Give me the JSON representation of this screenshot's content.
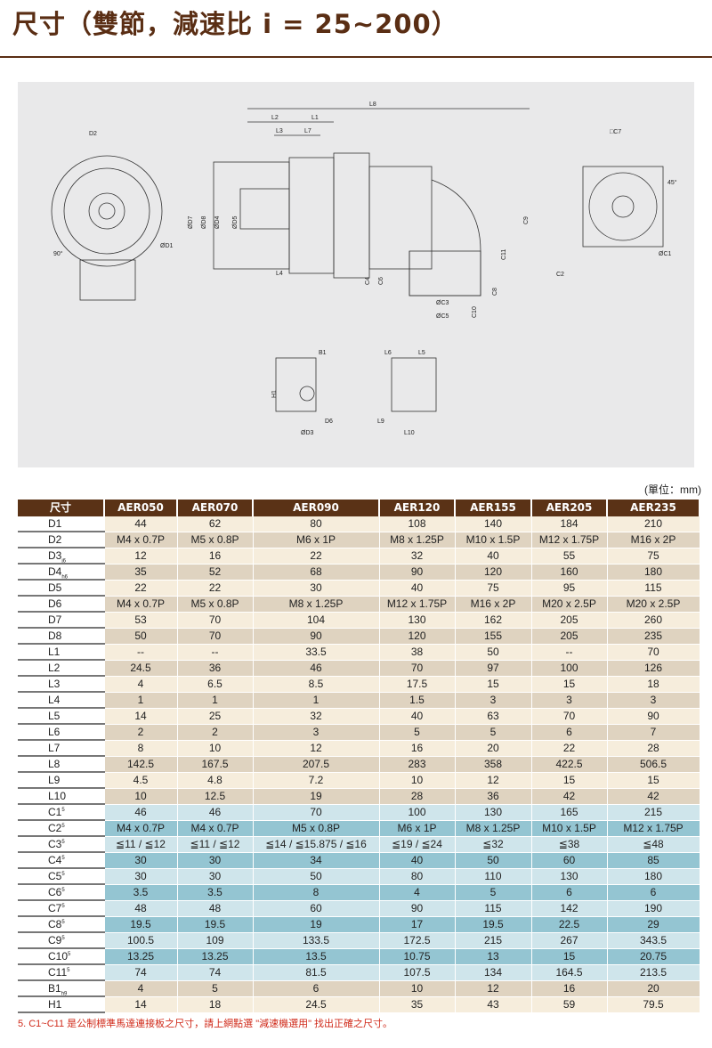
{
  "title": "尺寸（雙節，減速比 i = 25~200）",
  "drawing_labels": [
    "L8",
    "L2",
    "L1",
    "L3",
    "L7",
    "D2",
    "ØD1",
    "ØD7",
    "ØD8",
    "ØD4",
    "ØD5",
    "L4",
    "C4",
    "C6",
    "ØC3",
    "ØC5",
    "C10",
    "C8",
    "C11",
    "C9",
    "□C7",
    "45°",
    "ØC1",
    "C2",
    "B1",
    "H1",
    "D6",
    "ØD3",
    "L6",
    "L5",
    "L9",
    "L10",
    "90°"
  ],
  "unit": "(單位：mm)",
  "table": {
    "headers": [
      "尺寸",
      "AER050",
      "AER070",
      "AER090",
      "AER120",
      "AER155",
      "AER205",
      "AER235"
    ],
    "rows": [
      {
        "label": "D1",
        "sub": "",
        "sup": "",
        "style": "c",
        "values": [
          "44",
          "62",
          "80",
          "108",
          "140",
          "184",
          "210"
        ]
      },
      {
        "label": "D2",
        "sub": "",
        "sup": "",
        "style": "t",
        "values": [
          "M4 x 0.7P",
          "M5 x 0.8P",
          "M6 x 1P",
          "M8 x 1.25P",
          "M10 x 1.5P",
          "M12 x 1.75P",
          "M16 x 2P"
        ]
      },
      {
        "label": "D3",
        "sub": "j6",
        "sup": "",
        "style": "c",
        "values": [
          "12",
          "16",
          "22",
          "32",
          "40",
          "55",
          "75"
        ]
      },
      {
        "label": "D4",
        "sub": "h6",
        "sup": "",
        "style": "t",
        "values": [
          "35",
          "52",
          "68",
          "90",
          "120",
          "160",
          "180"
        ]
      },
      {
        "label": "D5",
        "sub": "",
        "sup": "",
        "style": "c",
        "values": [
          "22",
          "22",
          "30",
          "40",
          "75",
          "95",
          "115"
        ]
      },
      {
        "label": "D6",
        "sub": "",
        "sup": "",
        "style": "t",
        "values": [
          "M4 x 0.7P",
          "M5 x 0.8P",
          "M8 x 1.25P",
          "M12 x 1.75P",
          "M16 x 2P",
          "M20 x 2.5P",
          "M20 x 2.5P"
        ]
      },
      {
        "label": "D7",
        "sub": "",
        "sup": "",
        "style": "c",
        "values": [
          "53",
          "70",
          "104",
          "130",
          "162",
          "205",
          "260"
        ]
      },
      {
        "label": "D8",
        "sub": "",
        "sup": "",
        "style": "t",
        "values": [
          "50",
          "70",
          "90",
          "120",
          "155",
          "205",
          "235"
        ]
      },
      {
        "label": "L1",
        "sub": "",
        "sup": "",
        "style": "c",
        "values": [
          "--",
          "--",
          "33.5",
          "38",
          "50",
          "--",
          "70"
        ]
      },
      {
        "label": "L2",
        "sub": "",
        "sup": "",
        "style": "t",
        "values": [
          "24.5",
          "36",
          "46",
          "70",
          "97",
          "100",
          "126"
        ]
      },
      {
        "label": "L3",
        "sub": "",
        "sup": "",
        "style": "c",
        "values": [
          "4",
          "6.5",
          "8.5",
          "17.5",
          "15",
          "15",
          "18"
        ]
      },
      {
        "label": "L4",
        "sub": "",
        "sup": "",
        "style": "t",
        "values": [
          "1",
          "1",
          "1",
          "1.5",
          "3",
          "3",
          "3"
        ]
      },
      {
        "label": "L5",
        "sub": "",
        "sup": "",
        "style": "c",
        "values": [
          "14",
          "25",
          "32",
          "40",
          "63",
          "70",
          "90"
        ]
      },
      {
        "label": "L6",
        "sub": "",
        "sup": "",
        "style": "t",
        "values": [
          "2",
          "2",
          "3",
          "5",
          "5",
          "6",
          "7"
        ]
      },
      {
        "label": "L7",
        "sub": "",
        "sup": "",
        "style": "c",
        "values": [
          "8",
          "10",
          "12",
          "16",
          "20",
          "22",
          "28"
        ]
      },
      {
        "label": "L8",
        "sub": "",
        "sup": "",
        "style": "t",
        "values": [
          "142.5",
          "167.5",
          "207.5",
          "283",
          "358",
          "422.5",
          "506.5"
        ]
      },
      {
        "label": "L9",
        "sub": "",
        "sup": "",
        "style": "c",
        "values": [
          "4.5",
          "4.8",
          "7.2",
          "10",
          "12",
          "15",
          "15"
        ]
      },
      {
        "label": "L10",
        "sub": "",
        "sup": "",
        "style": "t",
        "values": [
          "10",
          "12.5",
          "19",
          "28",
          "36",
          "42",
          "42"
        ]
      },
      {
        "label": "C1",
        "sub": "",
        "sup": "5",
        "style": "lb",
        "values": [
          "46",
          "46",
          "70",
          "100",
          "130",
          "165",
          "215"
        ]
      },
      {
        "label": "C2",
        "sub": "",
        "sup": "5",
        "style": "db",
        "values": [
          "M4 x 0.7P",
          "M4 x 0.7P",
          "M5 x 0.8P",
          "M6 x 1P",
          "M8 x 1.25P",
          "M10 x 1.5P",
          "M12 x 1.75P"
        ]
      },
      {
        "label": "C3",
        "sub": "",
        "sup": "5",
        "style": "lb",
        "values": [
          "≦11 / ≦12",
          "≦11 / ≦12",
          "≦14 / ≦15.875 / ≦16",
          "≦19 / ≦24",
          "≦32",
          "≦38",
          "≦48"
        ]
      },
      {
        "label": "C4",
        "sub": "",
        "sup": "5",
        "style": "db",
        "values": [
          "30",
          "30",
          "34",
          "40",
          "50",
          "60",
          "85"
        ]
      },
      {
        "label": "C5",
        "sub": "",
        "sup": "5",
        "style": "lb",
        "values": [
          "30",
          "30",
          "50",
          "80",
          "110",
          "130",
          "180"
        ]
      },
      {
        "label": "C6",
        "sub": "",
        "sup": "5",
        "style": "db",
        "values": [
          "3.5",
          "3.5",
          "8",
          "4",
          "5",
          "6",
          "6"
        ]
      },
      {
        "label": "C7",
        "sub": "",
        "sup": "5",
        "style": "lb",
        "values": [
          "48",
          "48",
          "60",
          "90",
          "115",
          "142",
          "190"
        ]
      },
      {
        "label": "C8",
        "sub": "",
        "sup": "5",
        "style": "db",
        "values": [
          "19.5",
          "19.5",
          "19",
          "17",
          "19.5",
          "22.5",
          "29"
        ]
      },
      {
        "label": "C9",
        "sub": "",
        "sup": "5",
        "style": "lb",
        "values": [
          "100.5",
          "109",
          "133.5",
          "172.5",
          "215",
          "267",
          "343.5"
        ]
      },
      {
        "label": "C10",
        "sub": "",
        "sup": "5",
        "style": "db",
        "values": [
          "13.25",
          "13.25",
          "13.5",
          "10.75",
          "13",
          "15",
          "20.75"
        ]
      },
      {
        "label": "C11",
        "sub": "",
        "sup": "5",
        "style": "lb",
        "values": [
          "74",
          "74",
          "81.5",
          "107.5",
          "134",
          "164.5",
          "213.5"
        ]
      },
      {
        "label": "B1",
        "sub": "h9",
        "sup": "",
        "style": "t",
        "values": [
          "4",
          "5",
          "6",
          "10",
          "12",
          "16",
          "20"
        ]
      },
      {
        "label": "H1",
        "sub": "",
        "sup": "",
        "style": "c",
        "values": [
          "14",
          "18",
          "24.5",
          "35",
          "43",
          "59",
          "79.5"
        ]
      }
    ]
  },
  "footnote": "5. C1~C11 是公制標準馬達連接板之尺寸，請上網點選 \"減速機選用\" 找出正確之尺寸。"
}
